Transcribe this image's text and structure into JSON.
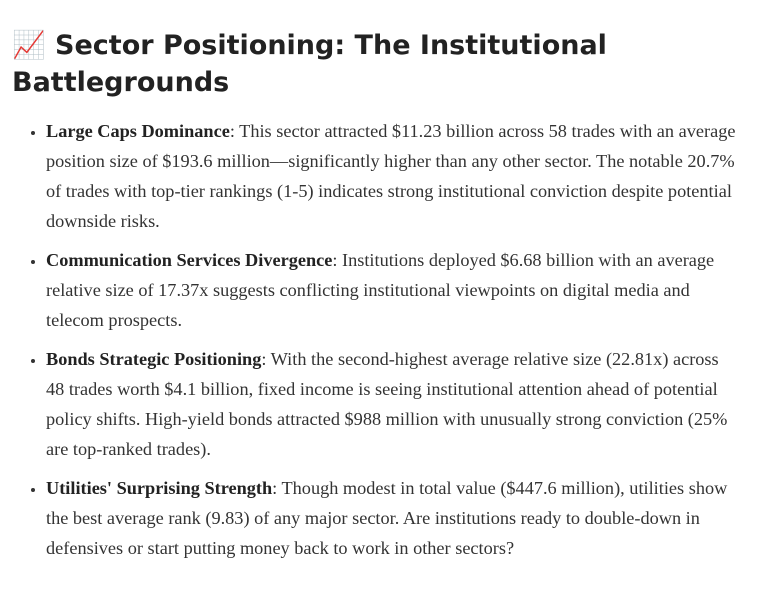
{
  "heading": {
    "title": "📈 Sector Positioning: The Institutional Battlegrounds"
  },
  "items": [
    {
      "label": "Large Caps Dominance",
      "text": ": This sector attracted $11.23 billion across 58 trades with an average position size of $193.6 million—significantly higher than any other sector. The notable 20.7% of trades with top-tier rankings (1-5) indicates strong institutional conviction despite potential downside risks."
    },
    {
      "label": "Communication Services Divergence",
      "text": ": Institutions deployed $6.68 billion with an average relative size of 17.37x suggests conflicting institutional viewpoints on digital media and telecom prospects."
    },
    {
      "label": "Bonds Strategic Positioning",
      "text": ": With the second-highest average relative size (22.81x) across 48 trades worth $4.1 billion, fixed income is seeing institutional attention ahead of potential policy shifts. High-yield bonds attracted $988 million with unusually strong conviction (25% are top-ranked trades)."
    },
    {
      "label": "Utilities' Surprising Strength",
      "text": ": Though modest in total value ($447.6 million), utilities show the best average rank (9.83) of any major sector. Are institutions ready to double-down in defensives or start putting money back to work in other sectors?"
    }
  ]
}
